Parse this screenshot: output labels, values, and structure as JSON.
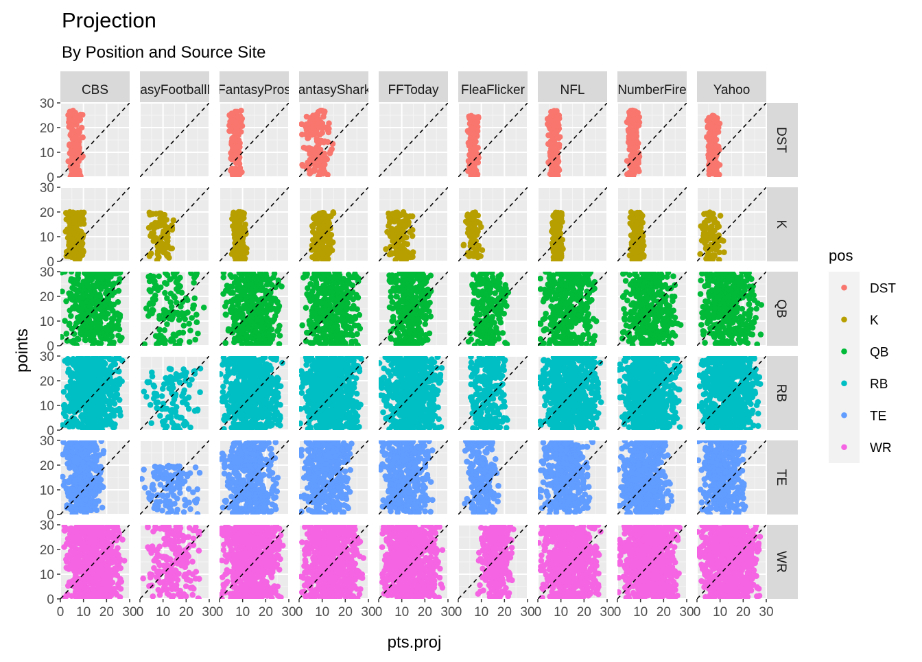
{
  "chart_data": {
    "type": "scatter",
    "title": "Projection",
    "subtitle": "By Position and Source Site",
    "xlabel": "pts.proj",
    "ylabel": "points",
    "xlim": [
      0,
      30
    ],
    "ylim": [
      0,
      30
    ],
    "x_ticks": [
      0,
      10,
      20,
      30
    ],
    "y_ticks": [
      0,
      10,
      20,
      30
    ],
    "grid": true,
    "reference_line": {
      "type": "identity",
      "style": "dashed",
      "color": "#000000"
    },
    "legend": {
      "title": "pos",
      "placement": "right",
      "entries": [
        {
          "label": "DST",
          "color": "#F8766D"
        },
        {
          "label": "K",
          "color": "#B79F00"
        },
        {
          "label": "QB",
          "color": "#00BA38"
        },
        {
          "label": "RB",
          "color": "#00BFC4"
        },
        {
          "label": "TE",
          "color": "#619CFF"
        },
        {
          "label": "WR",
          "color": "#F564E3"
        }
      ]
    },
    "facet_columns": [
      "CBS",
      "FantasyFootballNerd",
      "FantasyPros",
      "FantasySharks",
      "FFToday",
      "FleaFlicker",
      "NFL",
      "NumberFire",
      "Yahoo"
    ],
    "facet_rows": [
      "DST",
      "K",
      "QB",
      "RB",
      "TE",
      "WR"
    ],
    "point_clouds": {
      "DST": {
        "CBS": {
          "x": [
            3,
            10
          ],
          "y": [
            0,
            27
          ],
          "n": 170
        },
        "FantasyFootballNerd": {
          "x": [
            0,
            0
          ],
          "y": [
            0,
            0
          ],
          "n": 0
        },
        "FantasyPros": {
          "x": [
            4,
            10
          ],
          "y": [
            0,
            27
          ],
          "n": 170
        },
        "FantasySharks": {
          "x": [
            0,
            15
          ],
          "y": [
            0,
            27
          ],
          "n": 150
        },
        "FFToday": {
          "x": [
            0,
            0
          ],
          "y": [
            0,
            0
          ],
          "n": 0
        },
        "FleaFlicker": {
          "x": [
            4,
            9
          ],
          "y": [
            0,
            25
          ],
          "n": 150
        },
        "NFL": {
          "x": [
            4,
            10
          ],
          "y": [
            0,
            27
          ],
          "n": 160
        },
        "NumberFire": {
          "x": [
            4,
            10
          ],
          "y": [
            0,
            27
          ],
          "n": 170
        },
        "Yahoo": {
          "x": [
            4,
            10
          ],
          "y": [
            0,
            25
          ],
          "n": 160
        }
      },
      "K": {
        "CBS": {
          "x": [
            2,
            11
          ],
          "y": [
            0,
            20
          ],
          "n": 170
        },
        "FantasyFootballNerd": {
          "x": [
            3,
            16
          ],
          "y": [
            0,
            20
          ],
          "n": 90
        },
        "FantasyPros": {
          "x": [
            5,
            12
          ],
          "y": [
            0,
            20
          ],
          "n": 170
        },
        "FantasySharks": {
          "x": [
            5,
            15
          ],
          "y": [
            0,
            20
          ],
          "n": 180
        },
        "FFToday": {
          "x": [
            3,
            16
          ],
          "y": [
            0,
            20
          ],
          "n": 150
        },
        "FleaFlicker": {
          "x": [
            2,
            11
          ],
          "y": [
            0,
            20
          ],
          "n": 70
        },
        "NFL": {
          "x": [
            6,
            11
          ],
          "y": [
            0,
            20
          ],
          "n": 150
        },
        "NumberFire": {
          "x": [
            5,
            12
          ],
          "y": [
            0,
            20
          ],
          "n": 170
        },
        "Yahoo": {
          "x": [
            0,
            12
          ],
          "y": [
            0,
            20
          ],
          "n": 90
        }
      },
      "QB": {
        "CBS": {
          "x": [
            0,
            28
          ],
          "y": [
            0,
            30
          ],
          "n": 380
        },
        "FantasyFootballNerd": {
          "x": [
            0,
            28
          ],
          "y": [
            0,
            30
          ],
          "n": 130
        },
        "FantasyPros": {
          "x": [
            0,
            28
          ],
          "y": [
            0,
            30
          ],
          "n": 400
        },
        "FantasySharks": {
          "x": [
            0,
            28
          ],
          "y": [
            0,
            30
          ],
          "n": 420
        },
        "FFToday": {
          "x": [
            4,
            24
          ],
          "y": [
            0,
            30
          ],
          "n": 380
        },
        "FleaFlicker": {
          "x": [
            4,
            22
          ],
          "y": [
            0,
            30
          ],
          "n": 220
        },
        "NFL": {
          "x": [
            0,
            26
          ],
          "y": [
            0,
            30
          ],
          "n": 360
        },
        "NumberFire": {
          "x": [
            0,
            28
          ],
          "y": [
            0,
            30
          ],
          "n": 380
        },
        "Yahoo": {
          "x": [
            0,
            28
          ],
          "y": [
            0,
            30
          ],
          "n": 380
        }
      },
      "RB": {
        "CBS": {
          "x": [
            0,
            27
          ],
          "y": [
            0,
            30
          ],
          "n": 600
        },
        "FantasyFootballNerd": {
          "x": [
            0,
            28
          ],
          "y": [
            0,
            25
          ],
          "n": 110
        },
        "FantasyPros": {
          "x": [
            0,
            28
          ],
          "y": [
            0,
            30
          ],
          "n": 650
        },
        "FantasySharks": {
          "x": [
            0,
            28
          ],
          "y": [
            0,
            30
          ],
          "n": 650
        },
        "FFToday": {
          "x": [
            0,
            28
          ],
          "y": [
            0,
            30
          ],
          "n": 600
        },
        "FleaFlicker": {
          "x": [
            4,
            22
          ],
          "y": [
            0,
            30
          ],
          "n": 250
        },
        "NFL": {
          "x": [
            0,
            28
          ],
          "y": [
            0,
            30
          ],
          "n": 600
        },
        "NumberFire": {
          "x": [
            0,
            28
          ],
          "y": [
            0,
            30
          ],
          "n": 650
        },
        "Yahoo": {
          "x": [
            0,
            28
          ],
          "y": [
            0,
            30
          ],
          "n": 600
        }
      },
      "TE": {
        "CBS": {
          "x": [
            0,
            20
          ],
          "y": [
            0,
            30
          ],
          "n": 400
        },
        "FantasyFootballNerd": {
          "x": [
            0,
            26
          ],
          "y": [
            0,
            20
          ],
          "n": 120
        },
        "FantasyPros": {
          "x": [
            0,
            26
          ],
          "y": [
            0,
            30
          ],
          "n": 420
        },
        "FantasySharks": {
          "x": [
            0,
            24
          ],
          "y": [
            0,
            30
          ],
          "n": 380
        },
        "FFToday": {
          "x": [
            0,
            24
          ],
          "y": [
            0,
            30
          ],
          "n": 380
        },
        "FleaFlicker": {
          "x": [
            2,
            18
          ],
          "y": [
            0,
            30
          ],
          "n": 200
        },
        "NFL": {
          "x": [
            0,
            24
          ],
          "y": [
            0,
            30
          ],
          "n": 400
        },
        "NumberFire": {
          "x": [
            0,
            24
          ],
          "y": [
            0,
            30
          ],
          "n": 420
        },
        "Yahoo": {
          "x": [
            0,
            22
          ],
          "y": [
            0,
            30
          ],
          "n": 360
        }
      },
      "WR": {
        "CBS": {
          "x": [
            0,
            28
          ],
          "y": [
            0,
            30
          ],
          "n": 700
        },
        "FantasyFootballNerd": {
          "x": [
            0,
            28
          ],
          "y": [
            0,
            30
          ],
          "n": 200
        },
        "FantasyPros": {
          "x": [
            0,
            28
          ],
          "y": [
            0,
            30
          ],
          "n": 750
        },
        "FantasySharks": {
          "x": [
            0,
            28
          ],
          "y": [
            0,
            30
          ],
          "n": 700
        },
        "FFToday": {
          "x": [
            0,
            28
          ],
          "y": [
            0,
            30
          ],
          "n": 700
        },
        "FleaFlicker": {
          "x": [
            8,
            24
          ],
          "y": [
            0,
            30
          ],
          "n": 300
        },
        "NFL": {
          "x": [
            0,
            28
          ],
          "y": [
            0,
            30
          ],
          "n": 700
        },
        "NumberFire": {
          "x": [
            0,
            28
          ],
          "y": [
            0,
            30
          ],
          "n": 750
        },
        "Yahoo": {
          "x": [
            0,
            28
          ],
          "y": [
            0,
            30
          ],
          "n": 700
        }
      }
    }
  }
}
